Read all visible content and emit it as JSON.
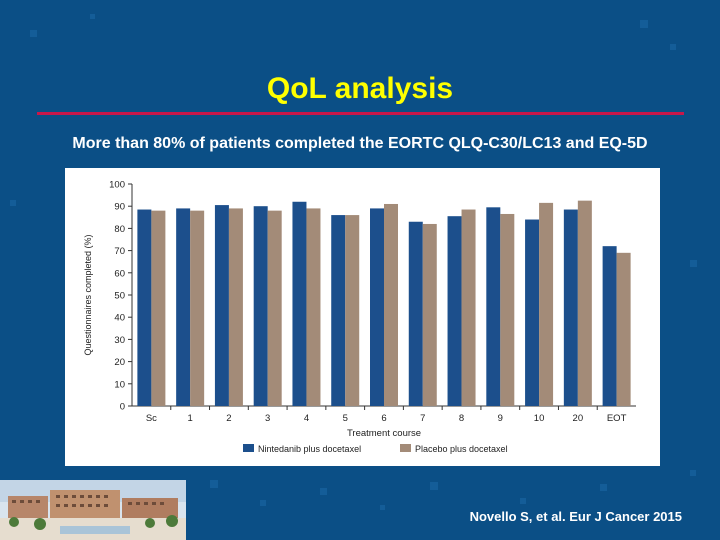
{
  "slide": {
    "title": "QoL analysis",
    "subtitle": "More than 80% of patients completed the EORTC QLQ-C30/LC13 and EQ-5D",
    "citation": "Novello S, et al. Eur J Cancer 2015",
    "colors": {
      "background": "#0b4f86",
      "title": "#ffff00",
      "rule": "#c8174a"
    }
  },
  "chart_data": {
    "type": "bar",
    "title": "",
    "xlabel": "Treatment course",
    "ylabel": "Questionnaires completed (%)",
    "ylim": [
      0,
      100
    ],
    "yticks": [
      0,
      10,
      20,
      30,
      40,
      50,
      60,
      70,
      80,
      90,
      100
    ],
    "categories": [
      "Sc",
      "1",
      "2",
      "3",
      "4",
      "5",
      "6",
      "7",
      "8",
      "9",
      "10",
      "20",
      "EOT"
    ],
    "series": [
      {
        "name": "Nintedanib plus docetaxel",
        "color": "#1c4f8c",
        "values": [
          88.5,
          89,
          90.5,
          90,
          92,
          86,
          89,
          83,
          85.5,
          89.5,
          84,
          88.5,
          72
        ]
      },
      {
        "name": "Placebo plus docetaxel",
        "color": "#a38b78",
        "values": [
          88,
          88,
          89,
          88,
          89,
          86,
          91,
          82,
          88.5,
          86.5,
          91.5,
          92.5,
          69
        ]
      }
    ],
    "grid": false,
    "legend_position": "bottom"
  }
}
